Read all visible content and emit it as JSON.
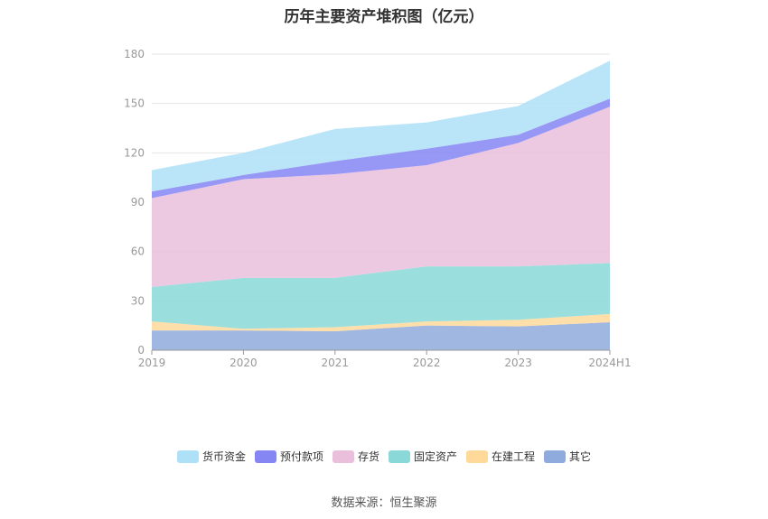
{
  "title": "历年主要资产堆积图（亿元）",
  "source": "数据来源：恒生聚源",
  "chart_data": {
    "type": "area",
    "stacked": true,
    "categories": [
      "2019",
      "2020",
      "2021",
      "2022",
      "2023",
      "2024H1"
    ],
    "ylim": [
      0,
      180
    ],
    "yticks": [
      0,
      30,
      60,
      90,
      120,
      150,
      180
    ],
    "grid": true,
    "legend_position": "bottom",
    "series": [
      {
        "name": "其它",
        "color": "#8faadc",
        "values": [
          12,
          12,
          11.5,
          15,
          14.5,
          17
        ]
      },
      {
        "name": "在建工程",
        "color": "#ffd99a",
        "values": [
          5.5,
          1,
          2.5,
          2.5,
          4,
          5
        ]
      },
      {
        "name": "固定资产",
        "color": "#8ad8d8",
        "values": [
          21,
          31,
          30,
          33.5,
          32.5,
          31
        ]
      },
      {
        "name": "存货",
        "color": "#eabfdc",
        "values": [
          54,
          60,
          63,
          61.5,
          75,
          95
        ]
      },
      {
        "name": "预付款项",
        "color": "#8585f3",
        "values": [
          4,
          2.5,
          8,
          10,
          5,
          5
        ]
      },
      {
        "name": "货币资金",
        "color": "#aee0f8",
        "values": [
          13,
          13.5,
          19.5,
          16,
          17.5,
          23
        ]
      }
    ],
    "legend_order": [
      "货币资金",
      "预付款项",
      "存货",
      "固定资产",
      "在建工程",
      "其它"
    ]
  }
}
